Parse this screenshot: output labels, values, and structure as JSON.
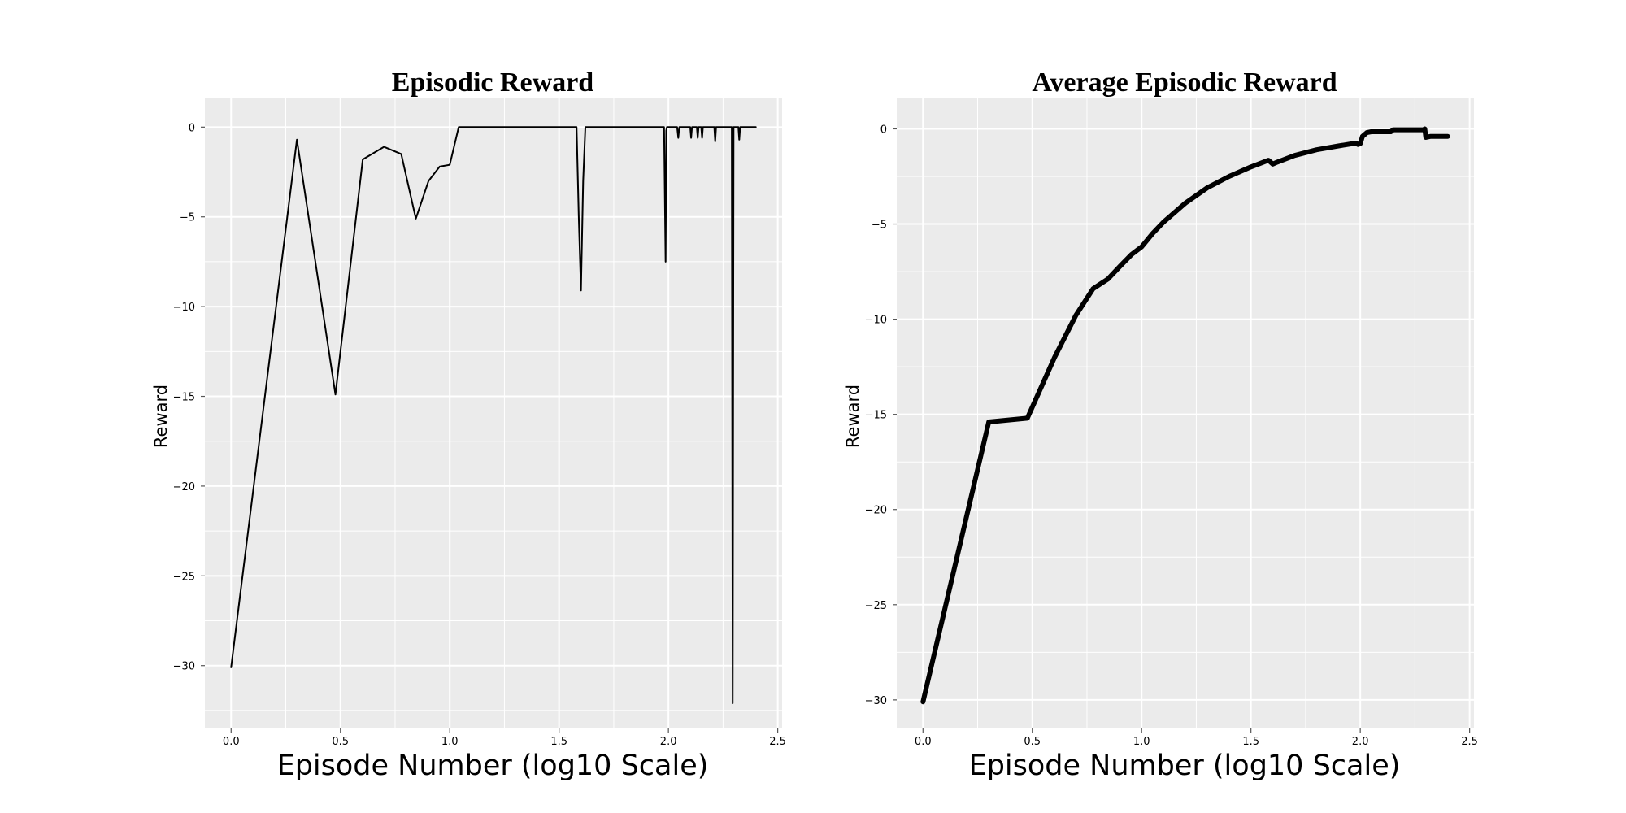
{
  "chart_data": [
    {
      "type": "line",
      "title": "Episodic Reward",
      "xlabel": "Episode Number (log10 Scale)",
      "ylabel": "Reward",
      "xlim": [
        -0.12,
        2.52
      ],
      "ylim": [
        -33.5,
        1.6
      ],
      "xticks": [
        0.0,
        0.5,
        1.0,
        1.5,
        2.0,
        2.5
      ],
      "xtick_labels": [
        "0.0",
        "0.5",
        "1.0",
        "1.5",
        "2.0",
        "2.5"
      ],
      "yticks": [
        0,
        -5,
        -10,
        -15,
        -20,
        -25,
        -30
      ],
      "ytick_labels": [
        "0",
        "−5",
        "−10",
        "−15",
        "−20",
        "−25",
        "−30"
      ],
      "grid": true,
      "series": [
        {
          "color": "#000000",
          "x": [
            0.0,
            0.301,
            0.477,
            0.602,
            0.699,
            0.778,
            0.845,
            0.903,
            0.954,
            1.0,
            1.041,
            1.58,
            1.59,
            1.6,
            1.61,
            1.62,
            1.98,
            1.987,
            1.99,
            1.993,
            1.995,
            2.04,
            2.045,
            2.05,
            2.1,
            2.104,
            2.108,
            2.13,
            2.134,
            2.138,
            2.15,
            2.154,
            2.158,
            2.21,
            2.214,
            2.218,
            2.29,
            2.294,
            2.298,
            2.304,
            2.32,
            2.324,
            2.328,
            2.34,
            2.4
          ],
          "values": [
            -30.1,
            -0.7,
            -14.9,
            -1.8,
            -1.1,
            -1.5,
            -5.1,
            -3.0,
            -2.2,
            -2.1,
            0.0,
            0.0,
            -5.0,
            -9.1,
            -3.0,
            0.0,
            0.0,
            -7.5,
            -0.2,
            0.0,
            0.0,
            0.0,
            -0.6,
            0.0,
            0.0,
            -0.6,
            0.0,
            0.0,
            -0.6,
            0.0,
            0.0,
            -0.6,
            0.0,
            0.0,
            -0.8,
            0.0,
            0.0,
            -32.1,
            0.0,
            0.0,
            0.0,
            -0.7,
            0.0,
            0.0,
            0.0
          ]
        }
      ]
    },
    {
      "type": "line",
      "title": "Average Episodic Reward",
      "xlabel": "Episode Number (log10 Scale)",
      "ylabel": "Reward",
      "xlim": [
        -0.12,
        2.52
      ],
      "ylim": [
        -31.5,
        1.6
      ],
      "xticks": [
        0.0,
        0.5,
        1.0,
        1.5,
        2.0,
        2.5
      ],
      "xtick_labels": [
        "0.0",
        "0.5",
        "1.0",
        "1.5",
        "2.0",
        "2.5"
      ],
      "yticks": [
        0,
        -5,
        -10,
        -15,
        -20,
        -25,
        -30
      ],
      "ytick_labels": [
        "0",
        "−5",
        "−10",
        "−15",
        "−20",
        "−25",
        "−30"
      ],
      "grid": true,
      "series": [
        {
          "color": "#000000",
          "x": [
            0.0,
            0.301,
            0.477,
            0.602,
            0.699,
            0.778,
            0.845,
            0.903,
            0.954,
            1.0,
            1.05,
            1.1,
            1.2,
            1.3,
            1.4,
            1.5,
            1.58,
            1.6,
            1.62,
            1.7,
            1.8,
            1.9,
            1.98,
            1.99,
            2.0,
            2.01,
            2.03,
            2.05,
            2.1,
            2.14,
            2.15,
            2.2,
            2.28,
            2.29,
            2.295,
            2.3,
            2.32,
            2.4
          ],
          "values": [
            -30.1,
            -15.4,
            -15.2,
            -12.0,
            -9.8,
            -8.4,
            -7.9,
            -7.2,
            -6.6,
            -6.2,
            -5.5,
            -4.9,
            -3.9,
            -3.1,
            -2.5,
            -2.0,
            -1.65,
            -1.85,
            -1.75,
            -1.4,
            -1.1,
            -0.9,
            -0.75,
            -0.82,
            -0.78,
            -0.4,
            -0.2,
            -0.15,
            -0.15,
            -0.15,
            -0.05,
            -0.05,
            -0.05,
            -0.05,
            0.0,
            -0.45,
            -0.4,
            -0.4
          ]
        }
      ]
    }
  ]
}
